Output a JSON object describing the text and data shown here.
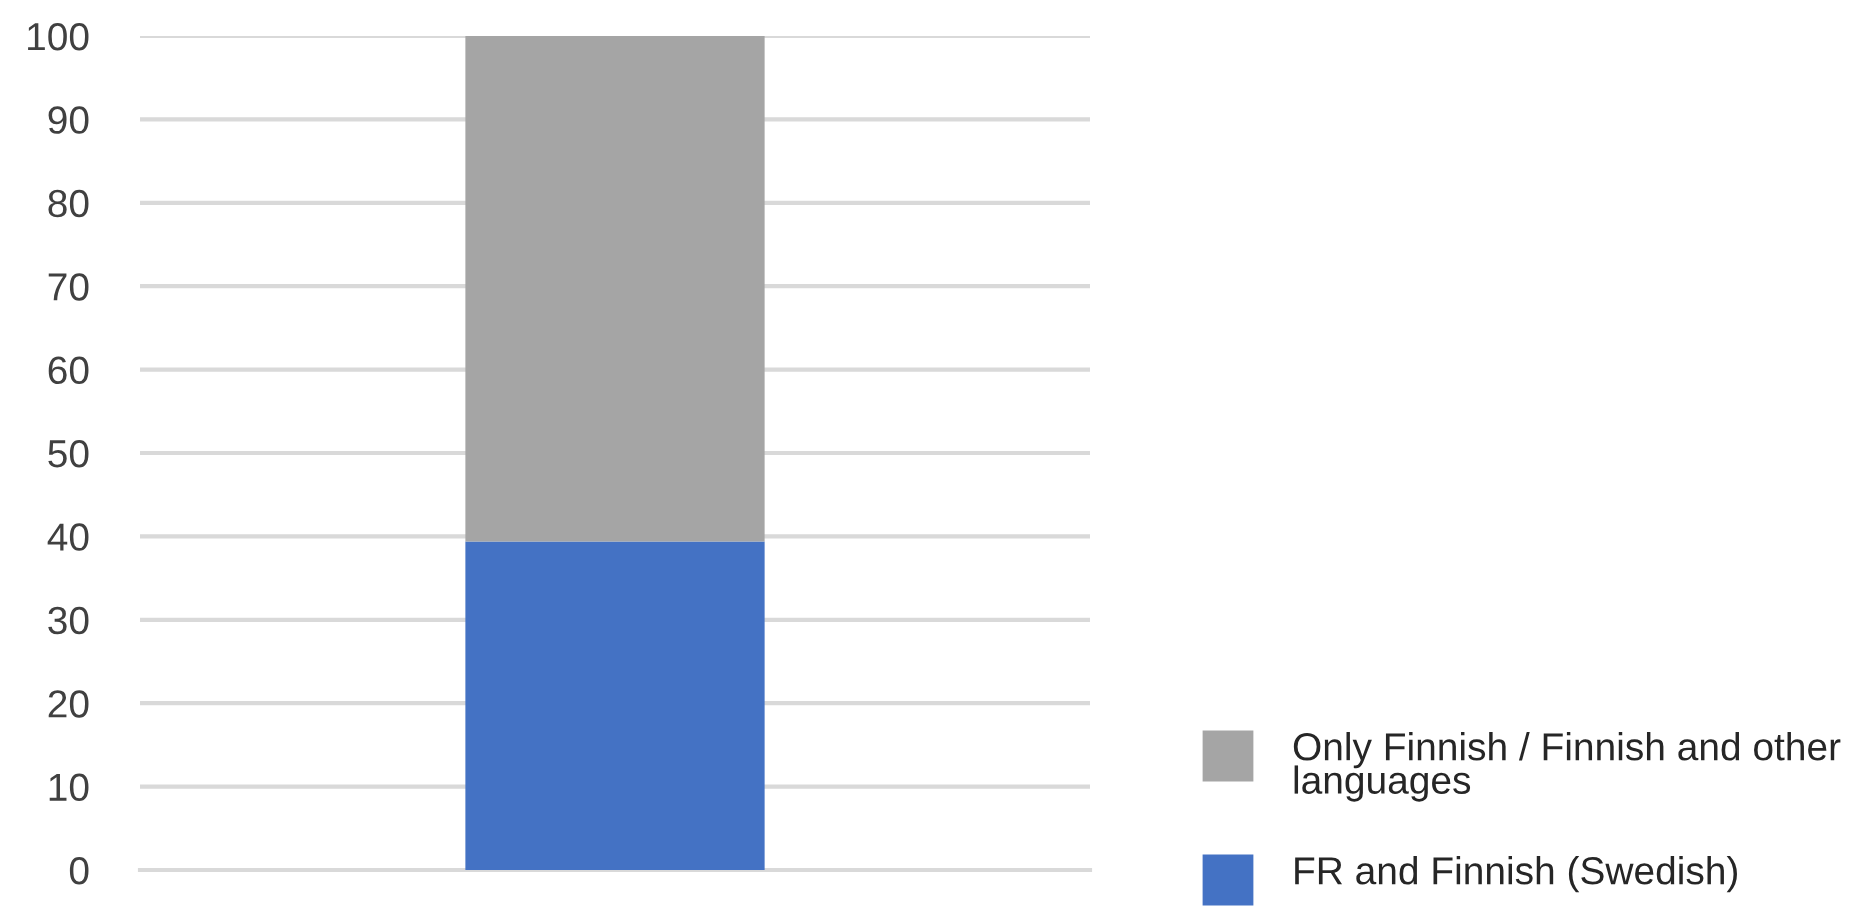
{
  "chart_data": {
    "type": "bar",
    "stacked": true,
    "categories": [
      null
    ],
    "series": [
      {
        "name": "FR and Finnish (Swedish)",
        "color": "#4472c4",
        "values": [
          39.4
        ]
      },
      {
        "name": "Only Finnish / Finnish and other languages",
        "color": "#a5a5a5",
        "values": [
          60.6
        ]
      }
    ],
    "ylim": [
      0,
      100
    ],
    "yticks": [
      0,
      10,
      20,
      30,
      40,
      50,
      60,
      70,
      80,
      90,
      100
    ],
    "grid": "y",
    "legend": "bottom right"
  }
}
